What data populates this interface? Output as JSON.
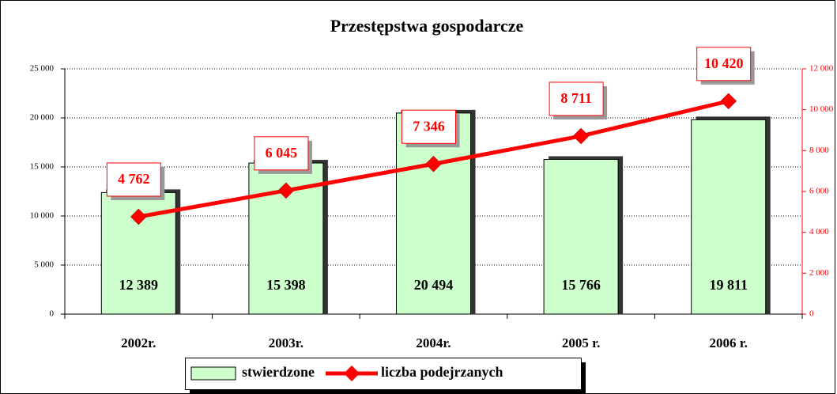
{
  "chart_data": {
    "type": "bar",
    "title": "Przestępstwa gospodarcze",
    "categories": [
      "2002r.",
      "2003r.",
      "2004r.",
      "2005 r.",
      "2006 r."
    ],
    "series": [
      {
        "name": "stwierdzone",
        "type": "bar",
        "color": "#ccffcc",
        "values": [
          12389,
          15398,
          20494,
          15766,
          19811
        ],
        "value_labels": [
          "12 389",
          "15 398",
          "20 494",
          "15 766",
          "19 811"
        ]
      },
      {
        "name": "liczba podejrzanych",
        "type": "line",
        "axis": "y2",
        "color": "#ff0000",
        "values": [
          4762,
          6045,
          7346,
          8711,
          10420
        ],
        "value_labels": [
          "4 762",
          "6 045",
          "7 346",
          "8 711",
          "10 420"
        ]
      }
    ],
    "ylim": [
      0,
      25000
    ],
    "yticks": [
      0,
      {
        "value": 5000,
        "label": "5 000"
      },
      {
        "value": 10000,
        "label": "10 000"
      },
      {
        "value": 15000,
        "label": "15 000"
      },
      {
        "value": 20000,
        "label": "20 000"
      },
      {
        "value": 25000,
        "label": "25 000"
      }
    ],
    "y2lim": [
      0,
      12000
    ],
    "y2ticks": [
      0,
      {
        "value": 2000,
        "label": "2 000"
      },
      {
        "value": 4000,
        "label": "4 000"
      },
      {
        "value": 6000,
        "label": "6 000"
      },
      {
        "value": 8000,
        "label": "8 000"
      },
      {
        "value": 10000,
        "label": "10 000"
      },
      {
        "value": 12000,
        "label": "12 000"
      }
    ],
    "y2color": "#ff0000",
    "grid": true,
    "legend": "bottom"
  }
}
